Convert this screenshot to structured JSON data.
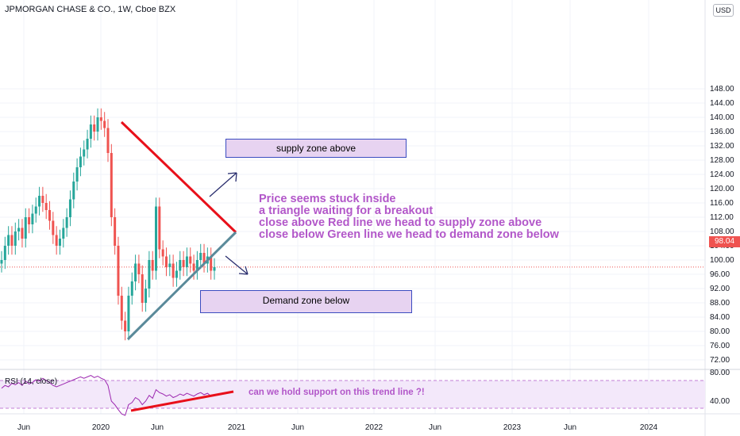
{
  "header": {
    "title": "JPMORGAN CHASE & CO., 1W, Cboe BZX",
    "currency_button": "USD"
  },
  "chart_data": {
    "type": "candlestick",
    "symbol": "JPMORGAN CHASE & CO.",
    "interval": "1W",
    "exchange": "Cboe BZX",
    "price_axis": {
      "ticks": [
        72,
        76,
        80,
        84,
        88,
        92,
        96,
        100,
        104,
        108,
        112,
        116,
        120,
        124,
        128,
        132,
        136,
        140,
        144,
        148
      ],
      "range": [
        70,
        150
      ]
    },
    "last_price": 98.04,
    "x_ticks": [
      "Jun",
      "2020",
      "Jun",
      "2021",
      "Jun",
      "2022",
      "Jun",
      "2023",
      "Jun",
      "2024"
    ],
    "candles_close": [
      100,
      104,
      107,
      104,
      108,
      109,
      106,
      112,
      110,
      113,
      115,
      118,
      116,
      114,
      111,
      107,
      104,
      106,
      109,
      112,
      117,
      122,
      126,
      129,
      131,
      134,
      138,
      136,
      140,
      139,
      137,
      130,
      112,
      104,
      90,
      83,
      80,
      90,
      94,
      99,
      96,
      88,
      92,
      100,
      97,
      115,
      103,
      101,
      98,
      99,
      95,
      97,
      100,
      98,
      101,
      99,
      97,
      100,
      102,
      99,
      101,
      97,
      98
    ],
    "drawings": {
      "red_line": "resistance trend line",
      "green_line": "support trend line"
    },
    "annotations": [
      "supply zone above",
      "Demand zone below",
      "Price seems stuck inside",
      "a triangle waiting for a breakout",
      "close above Red line we head to supply zone above",
      "close below Green line we head to demand zone below"
    ],
    "rsi": {
      "label": "RSI (14, close)",
      "axis_ticks": [
        40.0,
        80.0
      ],
      "note": "can we hold support on this trend line ?!",
      "values": [
        58,
        62,
        60,
        65,
        63,
        66,
        62,
        68,
        64,
        66,
        70,
        68,
        72,
        69,
        66,
        62,
        60,
        62,
        64,
        66,
        68,
        70,
        72,
        74,
        72,
        74,
        76,
        73,
        75,
        72,
        70,
        62,
        40,
        35,
        28,
        22,
        20,
        35,
        38,
        45,
        42,
        35,
        40,
        48,
        44,
        56,
        52,
        50,
        47,
        49,
        45,
        47,
        50,
        48,
        51,
        49,
        47,
        50,
        52,
        49,
        51,
        47,
        48
      ]
    }
  },
  "text_boxes": {
    "supply": "supply zone above",
    "demand": "Demand zone below",
    "note_lines": [
      "Price seems stuck inside",
      "a triangle waiting for a breakout",
      "close above Red line we head to supply zone above",
      "close below Green line we head to demand zone below"
    ]
  },
  "colors": {
    "up": "#26a69a",
    "down": "#ef5350",
    "annotation": "#b257c9",
    "zone_fill": "#e7d3f1"
  }
}
